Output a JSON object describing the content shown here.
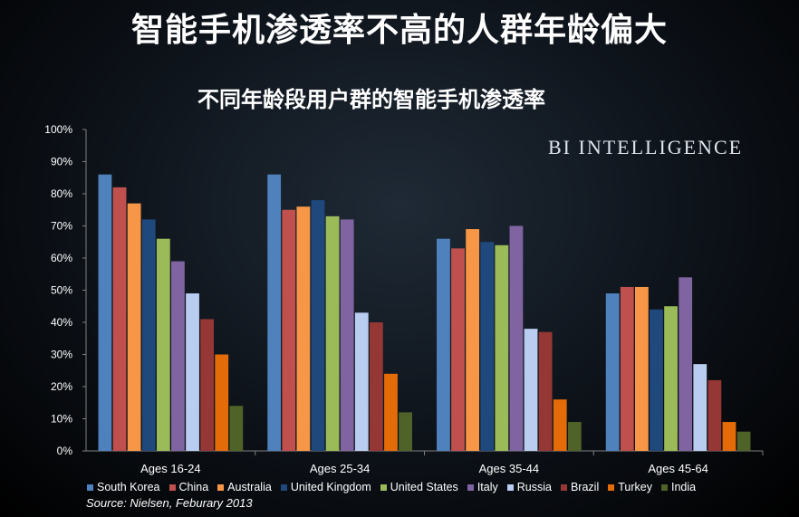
{
  "title": "智能手机渗透率不高的人群年龄偏大",
  "brand": "BI INTELLIGENCE",
  "source": "Source: Nielsen, Feburary 2013",
  "chart_data": {
    "type": "bar",
    "title": "不同年龄段用户群的智能手机渗透率",
    "categories": [
      "Ages 16-24",
      "Ages 25-34",
      "Ages 35-44",
      "Ages 45-64"
    ],
    "ylim": [
      0,
      100
    ],
    "y_ticks": [
      "0%",
      "10%",
      "20%",
      "30%",
      "40%",
      "50%",
      "60%",
      "70%",
      "80%",
      "90%",
      "100%"
    ],
    "grid": false,
    "legend_position": "bottom",
    "series": [
      {
        "name": "South Korea",
        "color": "#4f81bd",
        "values": [
          86,
          86,
          66,
          49
        ]
      },
      {
        "name": "China",
        "color": "#c0504d",
        "values": [
          82,
          75,
          63,
          51
        ]
      },
      {
        "name": "Australia",
        "color": "#f79646",
        "values": [
          77,
          76,
          69,
          51
        ]
      },
      {
        "name": "United Kingdom",
        "color": "#1f497d",
        "values": [
          72,
          78,
          65,
          44
        ]
      },
      {
        "name": "United States",
        "color": "#9bbb59",
        "values": [
          66,
          73,
          64,
          45
        ]
      },
      {
        "name": "Italy",
        "color": "#8064a2",
        "values": [
          59,
          72,
          70,
          54
        ]
      },
      {
        "name": "Russia",
        "color": "#b9cdf0",
        "values": [
          49,
          43,
          38,
          27
        ]
      },
      {
        "name": "Brazil",
        "color": "#953735",
        "values": [
          41,
          40,
          37,
          22
        ]
      },
      {
        "name": "Turkey",
        "color": "#e36c09",
        "values": [
          30,
          24,
          16,
          9
        ]
      },
      {
        "name": "India",
        "color": "#4f6228",
        "values": [
          14,
          12,
          9,
          6
        ]
      }
    ]
  }
}
